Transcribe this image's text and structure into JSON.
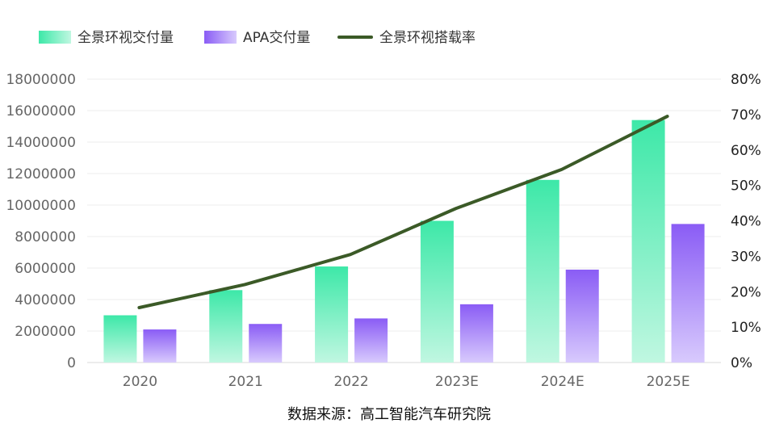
{
  "chart_data": {
    "type": "bar",
    "categories": [
      "2020",
      "2021",
      "2022",
      "2023E",
      "2024E",
      "2025E"
    ],
    "series": [
      {
        "name": "全景环视交付量",
        "type": "bar",
        "axis": "left",
        "color": "#3de8a8",
        "values": [
          3000000,
          4600000,
          6100000,
          9000000,
          11600000,
          15400000
        ]
      },
      {
        "name": "APA交付量",
        "type": "bar",
        "axis": "left",
        "color": "#8a5cf5",
        "values": [
          2100000,
          2450000,
          2800000,
          3700000,
          5900000,
          8800000
        ]
      },
      {
        "name": "全景环视搭载率",
        "type": "line",
        "axis": "right",
        "color": "#3b5a27",
        "values": [
          15.5,
          22,
          30.5,
          43.5,
          54.5,
          69.5
        ]
      }
    ],
    "y_left": {
      "min": 0,
      "max": 18000000,
      "ticks": [
        "0",
        "2000000",
        "4000000",
        "6000000",
        "8000000",
        "10000000",
        "12000000",
        "14000000",
        "16000000",
        "18000000"
      ]
    },
    "y_right": {
      "min": 0,
      "max": 80,
      "ticks": [
        "0%",
        "10%",
        "20%",
        "30%",
        "40%",
        "50%",
        "60%",
        "70%",
        "80%"
      ]
    },
    "grid": true,
    "legend_position": "top-left",
    "source": "数据来源：高工智能汽车研究院"
  }
}
